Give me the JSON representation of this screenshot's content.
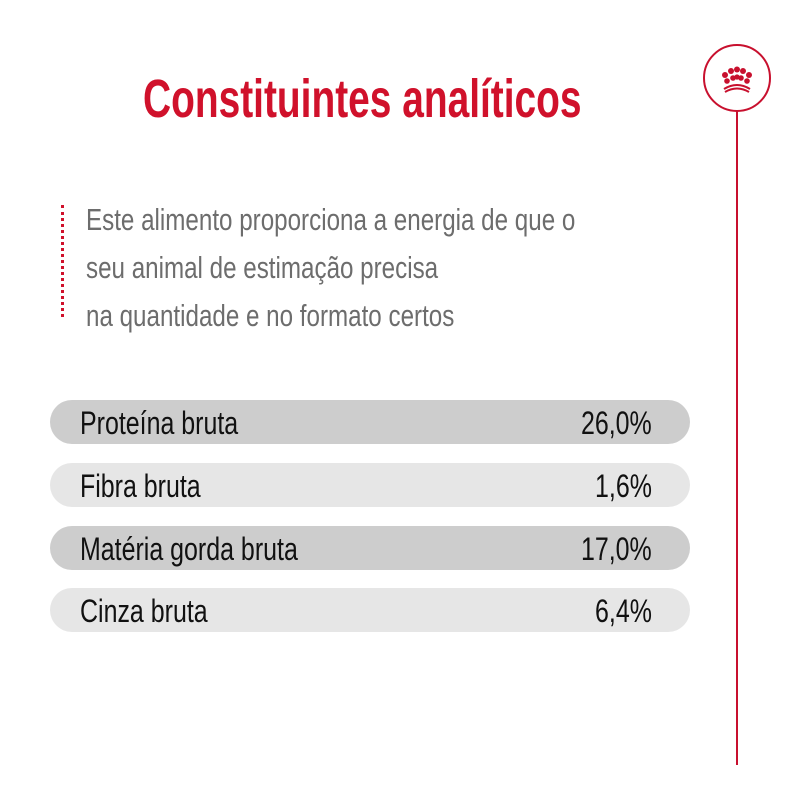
{
  "title": "Constituintes analíticos",
  "logo": {
    "icon": "crown-icon",
    "color": "#c8102e"
  },
  "intro_lines": [
    "Este alimento proporciona a energia de que o",
    "seu animal de estimação precisa",
    "na quantidade e no formato certos"
  ],
  "constituents": [
    {
      "label": "Proteína bruta",
      "value": "26,0%"
    },
    {
      "label": "Fibra bruta",
      "value": "1,6%"
    },
    {
      "label": "Matéria gorda bruta",
      "value": "17,0%"
    },
    {
      "label": "Cinza bruta",
      "value": "6,4%"
    }
  ],
  "colors": {
    "accent": "#d0112b",
    "row_dark": "#cdcdcd",
    "row_light": "#e6e6e6",
    "text_gray": "#6d6d6d"
  }
}
